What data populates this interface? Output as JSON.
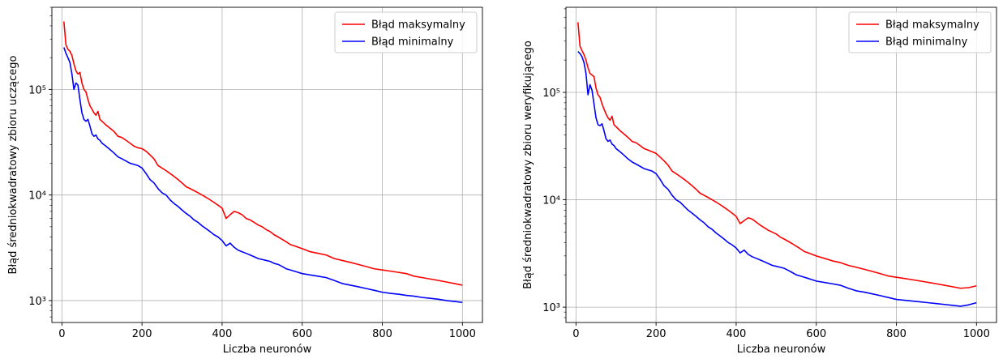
{
  "chart_data": [
    {
      "type": "line",
      "title": "",
      "xlabel": "Liczba neuronów",
      "ylabel": "Błąd średniokwadratowy zbioru uczącego",
      "yscale": "log",
      "xlim": [
        -25,
        1050
      ],
      "ylim": [
        620,
        600000
      ],
      "grid": true,
      "legend_position": "top-right",
      "x_ticks": [
        0,
        200,
        400,
        600,
        800,
        1000
      ],
      "x_tick_labels": [
        "0",
        "200",
        "400",
        "600",
        "800",
        "1000"
      ],
      "y_ticks": [
        1000,
        10000,
        100000
      ],
      "y_tick_labels": [
        "10³",
        "10⁴",
        "10⁵"
      ],
      "x": [
        5,
        10,
        15,
        20,
        25,
        30,
        35,
        40,
        45,
        50,
        55,
        60,
        65,
        70,
        75,
        80,
        85,
        90,
        95,
        100,
        110,
        120,
        130,
        140,
        150,
        160,
        170,
        180,
        190,
        200,
        210,
        220,
        230,
        240,
        250,
        260,
        270,
        280,
        290,
        300,
        310,
        320,
        330,
        340,
        350,
        360,
        370,
        380,
        390,
        400,
        410,
        420,
        430,
        440,
        450,
        460,
        470,
        480,
        490,
        500,
        510,
        520,
        530,
        540,
        550,
        560,
        570,
        580,
        590,
        600,
        620,
        640,
        660,
        680,
        700,
        720,
        740,
        760,
        780,
        800,
        820,
        840,
        860,
        880,
        900,
        920,
        940,
        960,
        980,
        1000
      ],
      "series": [
        {
          "name": "Błąd maksymalny",
          "color": "#ff0000",
          "values": [
            440000,
            265000,
            240000,
            230000,
            210000,
            175000,
            150000,
            140000,
            145000,
            115000,
            100000,
            95000,
            80000,
            70000,
            65000,
            60000,
            57000,
            62000,
            52000,
            50000,
            46000,
            43000,
            40000,
            36000,
            35000,
            33000,
            31000,
            29000,
            28000,
            27500,
            26000,
            24000,
            22000,
            19000,
            18000,
            17000,
            16000,
            15000,
            14000,
            13000,
            12000,
            11500,
            11000,
            10500,
            10000,
            9500,
            9000,
            8500,
            8000,
            7500,
            6000,
            6500,
            7000,
            6800,
            6500,
            6000,
            5800,
            5500,
            5200,
            5000,
            4700,
            4500,
            4200,
            4000,
            3800,
            3600,
            3400,
            3300,
            3200,
            3100,
            2900,
            2800,
            2700,
            2500,
            2400,
            2300,
            2200,
            2100,
            2000,
            1950,
            1900,
            1850,
            1800,
            1700,
            1650,
            1600,
            1550,
            1500,
            1450,
            1400
          ]
        },
        {
          "name": "Błąd minimalny",
          "color": "#0000ff",
          "values": [
            250000,
            220000,
            200000,
            180000,
            140000,
            100000,
            115000,
            110000,
            80000,
            60000,
            52000,
            50000,
            52000,
            45000,
            38000,
            36000,
            37000,
            34000,
            33000,
            31000,
            29000,
            27000,
            25000,
            23000,
            22000,
            21000,
            20000,
            19500,
            19000,
            18000,
            16000,
            14000,
            13000,
            11500,
            10500,
            10000,
            9000,
            8300,
            7800,
            7200,
            6700,
            6300,
            5800,
            5500,
            5100,
            4800,
            4500,
            4200,
            4000,
            3700,
            3300,
            3500,
            3200,
            3000,
            2900,
            2800,
            2700,
            2600,
            2500,
            2450,
            2400,
            2350,
            2250,
            2200,
            2100,
            2000,
            1950,
            1900,
            1850,
            1800,
            1750,
            1700,
            1650,
            1550,
            1450,
            1400,
            1350,
            1300,
            1250,
            1200,
            1170,
            1150,
            1120,
            1100,
            1070,
            1050,
            1030,
            1000,
            980,
            960
          ]
        }
      ]
    },
    {
      "type": "line",
      "title": "",
      "xlabel": "Liczba neuronów",
      "ylabel": "Błąd średniokwadratowy zbioru weryfikującego",
      "yscale": "log",
      "xlim": [
        -25,
        1050
      ],
      "ylim": [
        720,
        620000
      ],
      "grid": true,
      "legend_position": "top-right",
      "x_ticks": [
        0,
        200,
        400,
        600,
        800,
        1000
      ],
      "x_tick_labels": [
        "0",
        "200",
        "400",
        "600",
        "800",
        "1000"
      ],
      "y_ticks": [
        1000,
        10000,
        100000
      ],
      "y_tick_labels": [
        "10³",
        "10⁴",
        "10⁵"
      ],
      "x": [
        5,
        10,
        15,
        20,
        25,
        30,
        35,
        40,
        45,
        50,
        55,
        60,
        65,
        70,
        75,
        80,
        85,
        90,
        95,
        100,
        110,
        120,
        130,
        140,
        150,
        160,
        170,
        180,
        190,
        200,
        210,
        220,
        230,
        240,
        250,
        260,
        270,
        280,
        290,
        300,
        310,
        320,
        330,
        340,
        350,
        360,
        370,
        380,
        390,
        400,
        410,
        420,
        430,
        440,
        450,
        460,
        470,
        480,
        490,
        500,
        510,
        520,
        530,
        540,
        550,
        560,
        570,
        580,
        590,
        600,
        620,
        640,
        660,
        680,
        700,
        720,
        740,
        760,
        780,
        800,
        820,
        840,
        860,
        880,
        900,
        920,
        940,
        960,
        980,
        1000
      ],
      "series": [
        {
          "name": "Błąd maksymalny",
          "color": "#ff0000",
          "values": [
            450000,
            270000,
            245000,
            225000,
            200000,
            170000,
            150000,
            145000,
            140000,
            110000,
            95000,
            90000,
            78000,
            70000,
            63000,
            58000,
            55000,
            60000,
            50000,
            48000,
            44000,
            41000,
            38000,
            35000,
            34000,
            32000,
            30000,
            29000,
            28000,
            27000,
            25000,
            23000,
            21000,
            18500,
            17500,
            16500,
            15500,
            14500,
            13500,
            12500,
            11500,
            11000,
            10500,
            10000,
            9500,
            9000,
            8500,
            8000,
            7500,
            7000,
            6000,
            6400,
            6800,
            6600,
            6200,
            5800,
            5500,
            5200,
            5000,
            4800,
            4500,
            4300,
            4100,
            3900,
            3700,
            3500,
            3300,
            3200,
            3100,
            3000,
            2850,
            2700,
            2600,
            2450,
            2350,
            2250,
            2150,
            2050,
            1950,
            1900,
            1850,
            1800,
            1750,
            1700,
            1650,
            1600,
            1550,
            1500,
            1520,
            1580
          ]
        },
        {
          "name": "Błąd minimalny",
          "color": "#0000ff",
          "values": [
            240000,
            230000,
            215000,
            190000,
            150000,
            95000,
            118000,
            105000,
            78000,
            58000,
            50000,
            49000,
            51000,
            44000,
            37000,
            35000,
            36000,
            33000,
            32000,
            30000,
            28000,
            26000,
            24000,
            22500,
            21500,
            20500,
            19500,
            19000,
            18500,
            17500,
            15500,
            13500,
            12500,
            11000,
            10000,
            9500,
            8700,
            8000,
            7500,
            7000,
            6500,
            6100,
            5600,
            5300,
            4900,
            4600,
            4300,
            4000,
            3800,
            3550,
            3200,
            3400,
            3100,
            2950,
            2850,
            2750,
            2650,
            2550,
            2450,
            2400,
            2350,
            2300,
            2200,
            2100,
            2000,
            1950,
            1900,
            1850,
            1800,
            1750,
            1700,
            1650,
            1600,
            1500,
            1420,
            1380,
            1330,
            1280,
            1230,
            1180,
            1160,
            1140,
            1120,
            1100,
            1080,
            1060,
            1040,
            1020,
            1050,
            1100
          ]
        }
      ]
    }
  ]
}
